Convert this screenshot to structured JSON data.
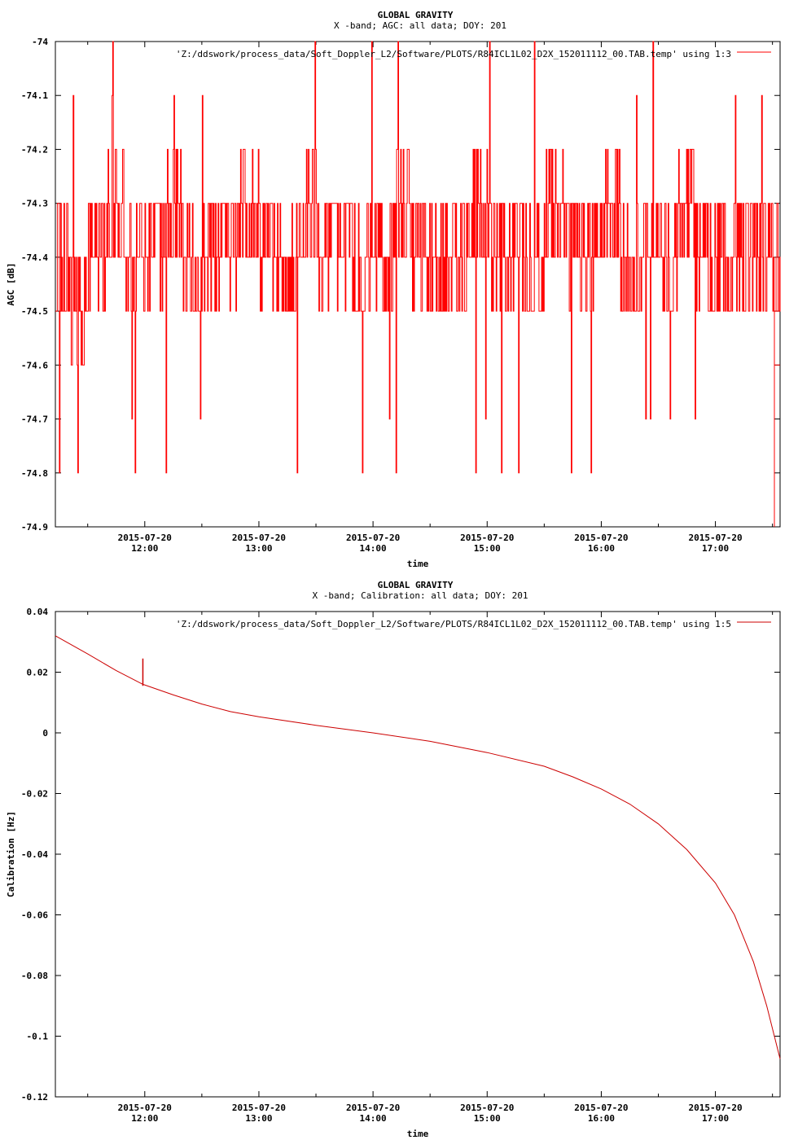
{
  "chart_data": [
    {
      "type": "line",
      "title": "GLOBAL GRAVITY",
      "subtitle": "X -band; AGC: all data; DOY: 201",
      "xlabel": "time",
      "ylabel": "AGC [dB]",
      "legend": "'Z:/ddswork/process_data/Soft_Doppler_L2/Software/PLOTS/R84ICL1L02_D2X_152011112_00.TAB.temp' using 1:3",
      "legend_position": "top-right",
      "color": "#ff0000",
      "xlim": [
        "2015-07-20 11:13",
        "2015-07-20 17:34"
      ],
      "ylim": [
        -74.9,
        -74.0
      ],
      "y_ticks": [
        {
          "value": -74.0,
          "label": "-74"
        },
        {
          "value": -74.1,
          "label": "-74.1"
        },
        {
          "value": -74.2,
          "label": "-74.2"
        },
        {
          "value": -74.3,
          "label": "-74.3"
        },
        {
          "value": -74.4,
          "label": "-74.4"
        },
        {
          "value": -74.5,
          "label": "-74.5"
        },
        {
          "value": -74.6,
          "label": "-74.6"
        },
        {
          "value": -74.7,
          "label": "-74.7"
        },
        {
          "value": -74.8,
          "label": "-74.8"
        },
        {
          "value": -74.9,
          "label": "-74.9"
        }
      ],
      "x_ticks": [
        {
          "value": "2015-07-20 12:00",
          "date": "2015-07-20",
          "time": "12:00"
        },
        {
          "value": "2015-07-20 13:00",
          "date": "2015-07-20",
          "time": "13:00"
        },
        {
          "value": "2015-07-20 14:00",
          "date": "2015-07-20",
          "time": "14:00"
        },
        {
          "value": "2015-07-20 15:00",
          "date": "2015-07-20",
          "time": "15:00"
        },
        {
          "value": "2015-07-20 16:00",
          "date": "2015-07-20",
          "time": "16:00"
        },
        {
          "value": "2015-07-20 17:00",
          "date": "2015-07-20",
          "time": "17:00"
        }
      ],
      "series": [
        {
          "x": [
            "2015-07-20 11:13",
            "2015-07-20 11:20",
            "2015-07-20 11:30",
            "2015-07-20 11:40",
            "2015-07-20 11:50",
            "2015-07-20 12:00",
            "2015-07-20 12:10",
            "2015-07-20 12:20",
            "2015-07-20 12:30",
            "2015-07-20 12:40",
            "2015-07-20 12:50",
            "2015-07-20 13:00",
            "2015-07-20 13:10",
            "2015-07-20 13:20",
            "2015-07-20 13:30",
            "2015-07-20 13:40",
            "2015-07-20 13:50",
            "2015-07-20 14:00",
            "2015-07-20 14:10",
            "2015-07-20 14:20",
            "2015-07-20 14:30",
            "2015-07-20 14:40",
            "2015-07-20 14:50",
            "2015-07-20 15:00",
            "2015-07-20 15:10",
            "2015-07-20 15:20",
            "2015-07-20 15:30",
            "2015-07-20 15:40",
            "2015-07-20 15:50",
            "2015-07-20 16:00",
            "2015-07-20 16:10",
            "2015-07-20 16:20",
            "2015-07-20 16:30",
            "2015-07-20 16:40",
            "2015-07-20 16:50",
            "2015-07-20 17:00",
            "2015-07-20 17:10",
            "2015-07-20 17:20",
            "2015-07-20 17:30"
          ],
          "values": [
            -74.5,
            -74.6,
            -74.4,
            -74.3,
            -74.5,
            -74.4,
            -74.3,
            -74.5,
            -74.4,
            -74.4,
            -74.3,
            -74.4,
            -74.5,
            -74.3,
            -74.4,
            -74.4,
            -74.5,
            -74.4,
            -74.3,
            -74.4,
            -74.5,
            -74.4,
            -74.3,
            -74.4,
            -74.4,
            -74.5,
            -74.3,
            -74.4,
            -74.4,
            -74.3,
            -74.5,
            -74.4,
            -74.4,
            -74.3,
            -74.4,
            -74.5,
            -74.4,
            -74.4,
            -74.6
          ],
          "mean": -74.4,
          "typical_range": [
            -74.6,
            -74.2
          ],
          "extremes": [
            -74.9,
            -74.0
          ]
        }
      ]
    },
    {
      "type": "line",
      "title": "GLOBAL GRAVITY",
      "subtitle": "X -band; Calibration: all data; DOY: 201",
      "xlabel": "time",
      "ylabel": "Calibration [Hz]",
      "legend": "'Z:/ddswork/process_data/Soft_Doppler_L2/Software/PLOTS/R84ICL1L02_D2X_152011112_00.TAB.temp' using 1:5",
      "legend_position": "top-right",
      "color": "#cc0000",
      "xlim": [
        "2015-07-20 11:13",
        "2015-07-20 17:34"
      ],
      "ylim": [
        -0.12,
        0.04
      ],
      "y_ticks": [
        {
          "value": 0.04,
          "label": "0.04"
        },
        {
          "value": 0.02,
          "label": "0.02"
        },
        {
          "value": 0,
          "label": "0"
        },
        {
          "value": -0.02,
          "label": "-0.02"
        },
        {
          "value": -0.04,
          "label": "-0.04"
        },
        {
          "value": -0.06,
          "label": "-0.06"
        },
        {
          "value": -0.08,
          "label": "-0.08"
        },
        {
          "value": -0.1,
          "label": "-0.1"
        },
        {
          "value": -0.12,
          "label": "-0.12"
        }
      ],
      "x_ticks": [
        {
          "value": "2015-07-20 12:00",
          "date": "2015-07-20",
          "time": "12:00"
        },
        {
          "value": "2015-07-20 13:00",
          "date": "2015-07-20",
          "time": "13:00"
        },
        {
          "value": "2015-07-20 14:00",
          "date": "2015-07-20",
          "time": "14:00"
        },
        {
          "value": "2015-07-20 15:00",
          "date": "2015-07-20",
          "time": "15:00"
        },
        {
          "value": "2015-07-20 16:00",
          "date": "2015-07-20",
          "time": "16:00"
        },
        {
          "value": "2015-07-20 17:00",
          "date": "2015-07-20",
          "time": "17:00"
        }
      ],
      "series": [
        {
          "x": [
            "2015-07-20 11:13",
            "2015-07-20 11:30",
            "2015-07-20 11:45",
            "2015-07-20 11:59",
            "2015-07-20 12:15",
            "2015-07-20 12:30",
            "2015-07-20 12:45",
            "2015-07-20 13:00",
            "2015-07-20 13:30",
            "2015-07-20 14:00",
            "2015-07-20 14:30",
            "2015-07-20 15:00",
            "2015-07-20 15:30",
            "2015-07-20 15:45",
            "2015-07-20 16:00",
            "2015-07-20 16:15",
            "2015-07-20 16:30",
            "2015-07-20 16:45",
            "2015-07-20 17:00",
            "2015-07-20 17:10",
            "2015-07-20 17:20",
            "2015-07-20 17:27",
            "2015-07-20 17:34"
          ],
          "values": [
            0.032,
            0.026,
            0.0205,
            0.016,
            0.0125,
            0.0095,
            0.007,
            0.0053,
            0.0025,
            0.0,
            -0.0028,
            -0.0065,
            -0.011,
            -0.0145,
            -0.0185,
            -0.0235,
            -0.03,
            -0.0385,
            -0.0495,
            -0.06,
            -0.0755,
            -0.09,
            -0.1075
          ]
        }
      ],
      "annotations": [
        {
          "x": "2015-07-20 11:59",
          "values": [
            0.0245,
            0.0155
          ],
          "note": "spike"
        }
      ]
    }
  ]
}
